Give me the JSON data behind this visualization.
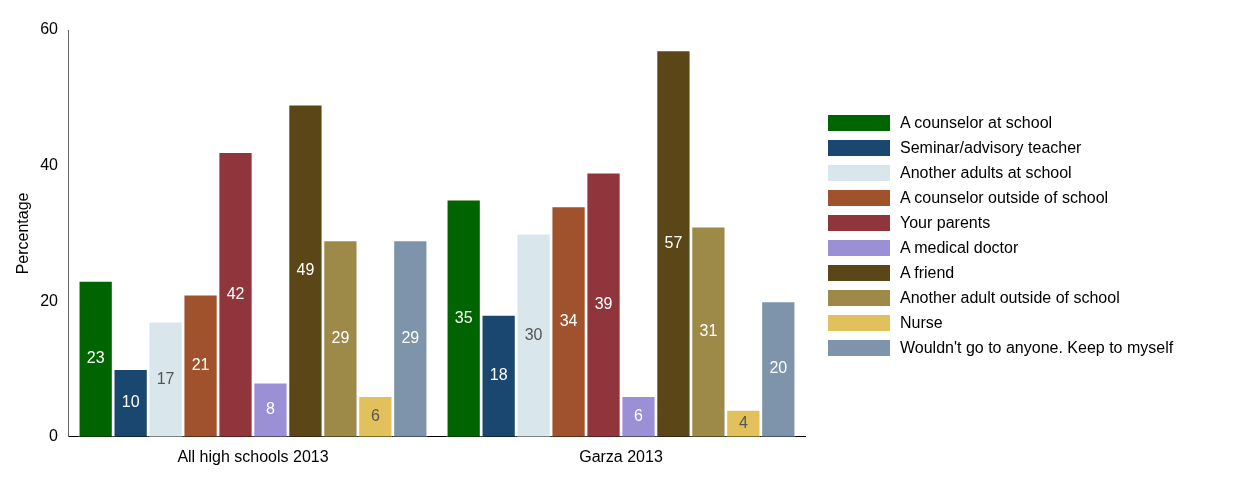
{
  "chart_data": {
    "type": "bar",
    "ylabel": "Percentage",
    "categories": [
      "All high schools 2013",
      "Garza 2013"
    ],
    "series": [
      {
        "name": "A counselor at school",
        "color": "#006400",
        "values": [
          23,
          35
        ]
      },
      {
        "name": "Seminar/advisory teacher",
        "color": "#1a476f",
        "values": [
          10,
          18
        ]
      },
      {
        "name": "Another adults at school",
        "color": "#d9e6eb",
        "values": [
          17,
          30
        ]
      },
      {
        "name": "A counselor outside of school",
        "color": "#a0522d",
        "values": [
          21,
          34
        ]
      },
      {
        "name": "Your parents",
        "color": "#90353b",
        "values": [
          42,
          39
        ]
      },
      {
        "name": "A medical doctor",
        "color": "#9b8fd6",
        "values": [
          8,
          6
        ]
      },
      {
        "name": "A friend",
        "color": "#5a4616",
        "values": [
          49,
          57
        ]
      },
      {
        "name": "Another adult outside of school",
        "color": "#9e8a48",
        "values": [
          29,
          31
        ]
      },
      {
        "name": "Nurse",
        "color": "#e2c15c",
        "values": [
          6,
          4
        ]
      },
      {
        "name": "Wouldn't go to anyone. Keep to myself",
        "color": "#7d94ab",
        "values": [
          29,
          20
        ]
      }
    ],
    "ylim": [
      0,
      60
    ],
    "yticks": [
      0,
      20,
      40,
      60
    ],
    "grid": false,
    "legend": "right",
    "data_labels": true
  }
}
